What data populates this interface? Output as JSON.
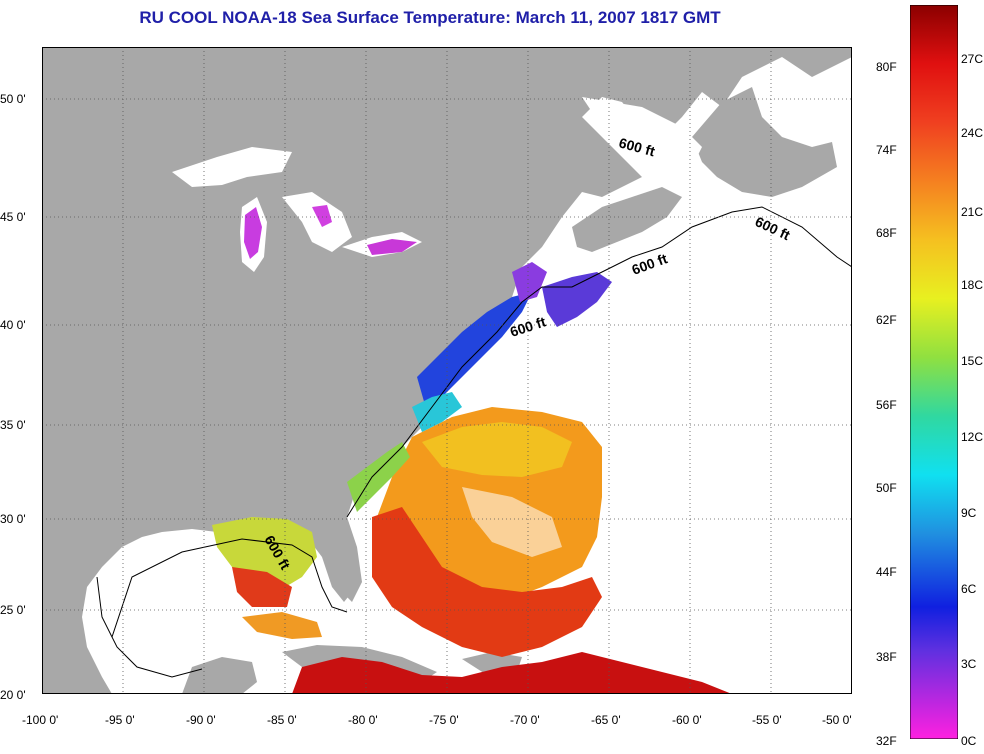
{
  "title": "RU COOL  NOAA-18  Sea Surface Temperature:  March 11, 2007 1817 GMT",
  "map": {
    "lon_labels": [
      "-100 0'",
      "-95 0'",
      "-90 0'",
      "-85 0'",
      "-80 0'",
      "-75 0'",
      "-70 0'",
      "-65 0'",
      "-60 0'",
      "-55 0'",
      "-50 0'"
    ],
    "lat_labels": [
      "50 0'",
      "45 0'",
      "40 0'",
      "35 0'",
      "30 0'",
      "25 0'",
      "20 0'"
    ],
    "contour_label": "600 ft",
    "colors": {
      "land": "#a8a8a8",
      "ocean_nodata": "#ffffff",
      "title": "#1f1fa8"
    }
  },
  "colorbar": {
    "fahrenheit_labels": [
      "80F",
      "74F",
      "68F",
      "62F",
      "56F",
      "50F",
      "44F",
      "38F",
      "32F"
    ],
    "celsius_labels": [
      "27C",
      "24C",
      "21C",
      "18C",
      "15C",
      "12C",
      "9C",
      "6C",
      "3C",
      "0C"
    ]
  }
}
